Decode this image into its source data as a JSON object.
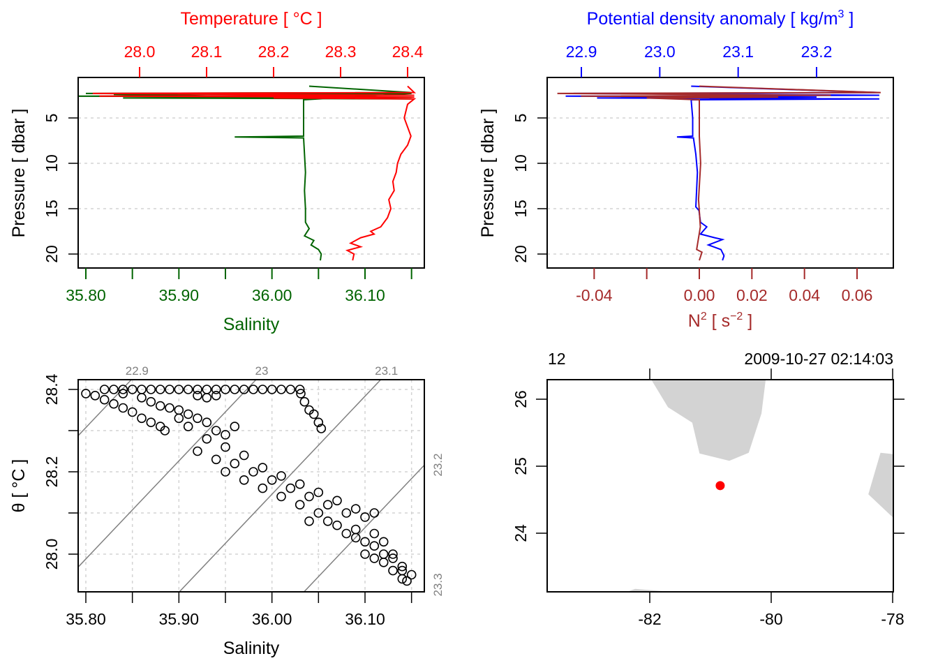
{
  "chart_data": [
    {
      "type": "line",
      "panel": "profile-temperature-salinity",
      "top_axis": {
        "label": "Temperature [ °C ]",
        "ticks": [
          "28.0",
          "28.1",
          "28.2",
          "28.3",
          "28.4"
        ],
        "range": [
          27.91,
          28.43
        ],
        "color": "#ff0000"
      },
      "bottom_axis": {
        "label": "Salinity",
        "ticks": [
          "35.80",
          "35.90",
          "36.00",
          "36.10"
        ],
        "minor_ticks": [
          35.8,
          35.85,
          35.9,
          35.95,
          36.0,
          36.05,
          36.1,
          36.15
        ],
        "range": [
          35.79,
          36.16
        ],
        "color": "#006400"
      },
      "left_axis": {
        "label": "Pressure [ dbar ]",
        "ticks": [
          "5",
          "10",
          "15",
          "20"
        ],
        "range": [
          21.3,
          0.5
        ],
        "reversed": true
      },
      "grid": "horizontal dashed",
      "series": [
        {
          "color": "#006400",
          "points": [
            [
              36.04,
              1.5
            ],
            [
              36.15,
              2.2
            ],
            [
              35.8,
              2.3
            ],
            [
              36.15,
              2.5
            ],
            [
              35.78,
              2.6
            ],
            [
              36.15,
              2.7
            ],
            [
              35.84,
              2.8
            ],
            [
              36.15,
              2.9
            ],
            [
              35.83,
              2.4
            ],
            [
              36.15,
              2.3
            ],
            [
              36.034,
              3.0
            ],
            [
              36.034,
              5.0
            ],
            [
              36.034,
              7.0
            ],
            [
              35.96,
              7.1
            ],
            [
              36.034,
              7.2
            ],
            [
              36.035,
              9
            ],
            [
              36.036,
              11
            ],
            [
              36.035,
              13
            ],
            [
              36.036,
              15
            ],
            [
              36.036,
              16.5
            ],
            [
              36.04,
              17.2
            ],
            [
              36.035,
              18
            ],
            [
              36.045,
              18.5
            ],
            [
              36.042,
              19
            ],
            [
              36.05,
              19.5
            ],
            [
              36.053,
              20
            ],
            [
              36.052,
              20.7
            ]
          ]
        },
        {
          "color": "#ff0000",
          "points": [
            [
              28.4,
              1.5
            ],
            [
              28.41,
              2.2
            ],
            [
              27.93,
              2.3
            ],
            [
              28.41,
              2.5
            ],
            [
              27.94,
              2.6
            ],
            [
              28.41,
              2.7
            ],
            [
              28.2,
              2.8
            ],
            [
              28.41,
              2.9
            ],
            [
              28.4,
              3.5
            ],
            [
              28.395,
              5
            ],
            [
              28.405,
              7
            ],
            [
              28.4,
              8
            ],
            [
              28.39,
              9
            ],
            [
              28.385,
              10
            ],
            [
              28.383,
              11
            ],
            [
              28.378,
              12
            ],
            [
              28.38,
              13
            ],
            [
              28.372,
              14
            ],
            [
              28.375,
              15
            ],
            [
              28.37,
              16
            ],
            [
              28.36,
              17
            ],
            [
              28.345,
              17.5
            ],
            [
              28.35,
              17.8
            ],
            [
              28.33,
              18.2
            ],
            [
              28.315,
              18.8
            ],
            [
              28.33,
              19.2
            ],
            [
              28.31,
              19.6
            ],
            [
              28.32,
              20
            ],
            [
              28.318,
              20.7
            ]
          ]
        }
      ]
    },
    {
      "type": "line",
      "panel": "profile-density-n2",
      "top_axis": {
        "label": "Potential density anomaly [ kg/m",
        "label_sup": "3",
        "label_end": " ]",
        "ticks": [
          "22.9",
          "23.0",
          "23.1",
          "23.2"
        ],
        "range": [
          22.855,
          23.297
        ],
        "color": "#0000ff"
      },
      "bottom_axis": {
        "label": "N",
        "label_sup": "2",
        "label_mid": " [ s",
        "label_sup2": "−2",
        "label_end": " ]",
        "ticks": [
          "-0.04",
          "",
          "0.00",
          "0.02",
          "0.04",
          "0.06"
        ],
        "tick_values": [
          -0.04,
          -0.02,
          0.0,
          0.02,
          0.04,
          0.06
        ],
        "range": [
          -0.0583,
          0.0737
        ],
        "color": "#a52a2a"
      },
      "left_axis": {
        "label": "Pressure [ dbar ]",
        "ticks": [
          "5",
          "10",
          "15",
          "20"
        ],
        "range": [
          21.3,
          0.5
        ],
        "reversed": true
      },
      "grid": "horizontal dashed",
      "series": [
        {
          "color": "#0000ff",
          "points": [
            [
              23.04,
              1.5
            ],
            [
              23.28,
              2.2
            ],
            [
              22.89,
              2.3
            ],
            [
              23.28,
              2.5
            ],
            [
              22.88,
              2.6
            ],
            [
              23.2,
              2.7
            ],
            [
              22.92,
              2.8
            ],
            [
              23.28,
              2.9
            ],
            [
              23.04,
              3.0
            ],
            [
              23.042,
              5
            ],
            [
              23.042,
              7.0
            ],
            [
              23.022,
              7.1
            ],
            [
              23.043,
              7.2
            ],
            [
              23.046,
              9
            ],
            [
              23.048,
              11
            ],
            [
              23.047,
              13
            ],
            [
              23.046,
              14.8
            ],
            [
              23.05,
              15.2
            ],
            [
              23.052,
              16.5
            ],
            [
              23.06,
              17
            ],
            [
              23.052,
              17.8
            ],
            [
              23.07,
              18.2
            ],
            [
              23.08,
              18.4
            ],
            [
              23.062,
              19
            ],
            [
              23.078,
              19.5
            ],
            [
              23.082,
              20.2
            ],
            [
              23.08,
              20.7
            ]
          ]
        },
        {
          "color": "#a52a2a",
          "points": [
            [
              0,
              1.5
            ],
            [
              0.069,
              2.2
            ],
            [
              -0.054,
              2.3
            ],
            [
              0.05,
              2.5
            ],
            [
              -0.045,
              2.6
            ],
            [
              0.03,
              2.7
            ],
            [
              -0.02,
              2.8
            ],
            [
              0.0,
              3.0
            ],
            [
              0.0,
              7
            ],
            [
              0.0005,
              10
            ],
            [
              -0.0003,
              14
            ],
            [
              0.0004,
              17
            ],
            [
              -0.001,
              19.5
            ],
            [
              0.001,
              19.8
            ],
            [
              0.0,
              20.7
            ]
          ]
        }
      ]
    },
    {
      "type": "scatter",
      "panel": "ts-diagram",
      "bottom_axis": {
        "label": "Salinity",
        "ticks": [
          "35.80",
          "35.90",
          "36.00",
          "36.10"
        ],
        "range": [
          35.79,
          36.162
        ]
      },
      "left_axis": {
        "label": "θ [ °C ]",
        "ticks": [
          "28.0",
          "28.2",
          "28.4"
        ],
        "minor_ticks": [
          28.0,
          28.1,
          28.2,
          28.3,
          28.4
        ],
        "range": [
          27.91,
          28.424
        ]
      },
      "isopycnals": {
        "levels": [
          22.9,
          23.0,
          23.1,
          23.2,
          23.3
        ],
        "labels": [
          "22.9",
          "23",
          "23.1",
          "23.2",
          "23.3"
        ],
        "color": "#808080"
      },
      "grid": "dashed",
      "points": [
        [
          35.82,
          28.4
        ],
        [
          35.83,
          28.4
        ],
        [
          35.84,
          28.4
        ],
        [
          35.85,
          28.4
        ],
        [
          35.86,
          28.4
        ],
        [
          35.87,
          28.4
        ],
        [
          35.88,
          28.4
        ],
        [
          35.89,
          28.4
        ],
        [
          35.9,
          28.4
        ],
        [
          35.91,
          28.4
        ],
        [
          35.92,
          28.4
        ],
        [
          35.93,
          28.4
        ],
        [
          35.94,
          28.4
        ],
        [
          35.95,
          28.4
        ],
        [
          35.96,
          28.4
        ],
        [
          35.97,
          28.4
        ],
        [
          35.98,
          28.4
        ],
        [
          35.99,
          28.4
        ],
        [
          36.0,
          28.4
        ],
        [
          36.01,
          28.4
        ],
        [
          36.02,
          28.4
        ],
        [
          36.03,
          28.4
        ],
        [
          35.92,
          28.385
        ],
        [
          35.93,
          28.38
        ],
        [
          35.94,
          28.385
        ],
        [
          36.031,
          28.39
        ],
        [
          36.035,
          28.37
        ],
        [
          36.04,
          28.35
        ],
        [
          36.045,
          28.34
        ],
        [
          36.05,
          28.32
        ],
        [
          36.053,
          28.305
        ],
        [
          35.8,
          28.39
        ],
        [
          35.81,
          28.385
        ],
        [
          35.82,
          28.375
        ],
        [
          35.83,
          28.365
        ],
        [
          35.84,
          28.355
        ],
        [
          35.85,
          28.345
        ],
        [
          35.86,
          28.33
        ],
        [
          35.87,
          28.32
        ],
        [
          35.88,
          28.31
        ],
        [
          35.885,
          28.3
        ],
        [
          35.84,
          28.39
        ],
        [
          35.86,
          28.38
        ],
        [
          35.87,
          28.37
        ],
        [
          35.88,
          28.36
        ],
        [
          35.89,
          28.355
        ],
        [
          35.9,
          28.35
        ],
        [
          35.91,
          28.34
        ],
        [
          35.92,
          28.33
        ],
        [
          35.93,
          28.32
        ],
        [
          35.9,
          28.33
        ],
        [
          35.91,
          28.31
        ],
        [
          35.94,
          28.3
        ],
        [
          35.95,
          28.29
        ],
        [
          35.96,
          28.31
        ],
        [
          35.92,
          28.25
        ],
        [
          35.94,
          28.23
        ],
        [
          35.96,
          28.22
        ],
        [
          35.98,
          28.2
        ],
        [
          36.0,
          28.18
        ],
        [
          36.02,
          28.16
        ],
        [
          36.04,
          28.14
        ],
        [
          36.06,
          28.12
        ],
        [
          36.08,
          28.1
        ],
        [
          36.1,
          28.09
        ],
        [
          35.93,
          28.28
        ],
        [
          35.95,
          28.26
        ],
        [
          35.97,
          28.24
        ],
        [
          35.99,
          28.21
        ],
        [
          36.01,
          28.19
        ],
        [
          36.03,
          28.17
        ],
        [
          36.05,
          28.15
        ],
        [
          36.07,
          28.13
        ],
        [
          36.09,
          28.11
        ],
        [
          36.11,
          28.1
        ],
        [
          35.95,
          28.2
        ],
        [
          35.97,
          28.18
        ],
        [
          35.99,
          28.16
        ],
        [
          36.01,
          28.14
        ],
        [
          36.03,
          28.12
        ],
        [
          36.05,
          28.1
        ],
        [
          36.07,
          28.07
        ],
        [
          36.09,
          28.04
        ],
        [
          36.11,
          28.02
        ],
        [
          36.13,
          27.99
        ],
        [
          36.15,
          27.95
        ],
        [
          36.14,
          27.96
        ],
        [
          36.12,
          28.0
        ],
        [
          36.1,
          28.03
        ],
        [
          36.08,
          28.05
        ],
        [
          36.06,
          28.08
        ],
        [
          36.04,
          28.08
        ],
        [
          36.1,
          28.0
        ],
        [
          36.12,
          27.98
        ],
        [
          36.14,
          27.94
        ],
        [
          36.145,
          27.935
        ],
        [
          36.13,
          27.96
        ],
        [
          36.11,
          27.99
        ],
        [
          36.09,
          28.06
        ],
        [
          36.11,
          28.05
        ],
        [
          36.12,
          28.03
        ],
        [
          36.13,
          28.0
        ],
        [
          36.14,
          27.97
        ]
      ]
    },
    {
      "type": "map",
      "panel": "station-map",
      "header_left": "12",
      "header_right": "2009-10-27 02:14:03",
      "bottom_axis": {
        "ticks": [
          "-82",
          "-80",
          "-78"
        ],
        "tick_values": [
          -82,
          -80,
          -78
        ],
        "range": [
          -83.69,
          -77.99
        ]
      },
      "left_axis": {
        "ticks": [
          "24",
          "25",
          "26"
        ],
        "tick_values": [
          24,
          25,
          26
        ],
        "range": [
          23.14,
          26.29
        ]
      },
      "land_color": "#d3d3d3",
      "station": {
        "lon": -80.84,
        "lat": 24.71,
        "color": "#ff0000"
      },
      "land": [
        [
          [
            -81.98,
            26.3
          ],
          [
            -81.7,
            25.88
          ],
          [
            -81.3,
            25.65
          ],
          [
            -81.18,
            25.19
          ],
          [
            -80.69,
            25.08
          ],
          [
            -80.37,
            25.2
          ],
          [
            -80.16,
            25.79
          ],
          [
            -80.09,
            26.3
          ]
        ],
        [
          [
            -78.2,
            25.2
          ],
          [
            -77.99,
            25.18
          ],
          [
            -77.99,
            24.23
          ],
          [
            -78.4,
            24.58
          ]
        ],
        [
          [
            -82.36,
            23.13
          ],
          [
            -82.24,
            23.17
          ],
          [
            -81.72,
            23.13
          ]
        ]
      ]
    }
  ]
}
